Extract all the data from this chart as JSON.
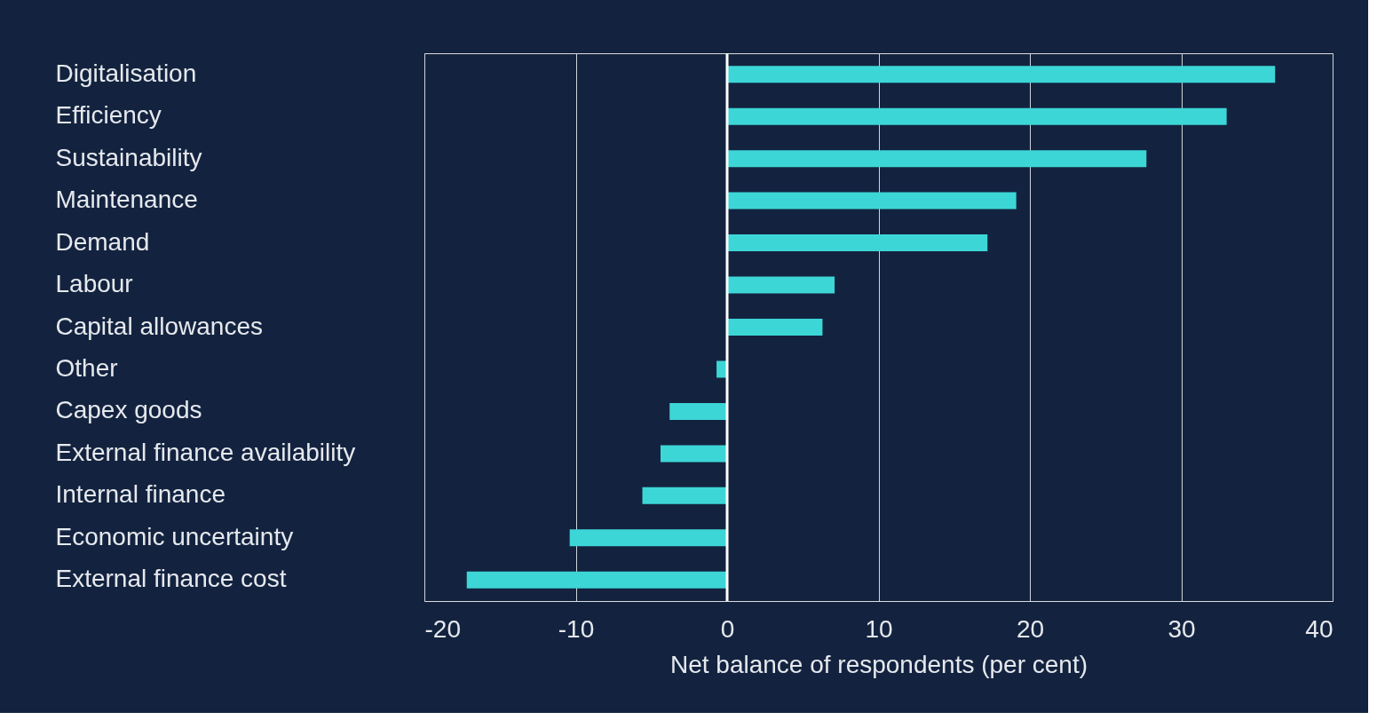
{
  "chart_data": {
    "type": "bar",
    "orientation": "horizontal",
    "xlabel": "Net balance of respondents (per cent)",
    "categories": [
      "Digitalisation",
      "Efficiency",
      "Sustainability",
      "Maintenance",
      "Demand",
      "Labour",
      "Capital allowances",
      "Other",
      "Capex goods",
      "External finance availability",
      "Internal finance",
      "Economic uncertainty",
      "External finance cost"
    ],
    "values": [
      36.2,
      33.0,
      27.7,
      19.1,
      17.2,
      7.1,
      6.3,
      -0.7,
      -3.8,
      -4.4,
      -5.6,
      -10.4,
      -17.2
    ],
    "color": "#3dd6d6",
    "xlim": [
      -20,
      40
    ],
    "xticks": [
      -20,
      -10,
      0,
      10,
      20,
      30,
      40
    ],
    "grid": "x",
    "ref_lines": [
      {
        "axis": "x",
        "value": 0,
        "color": "#ffffff"
      }
    ]
  }
}
